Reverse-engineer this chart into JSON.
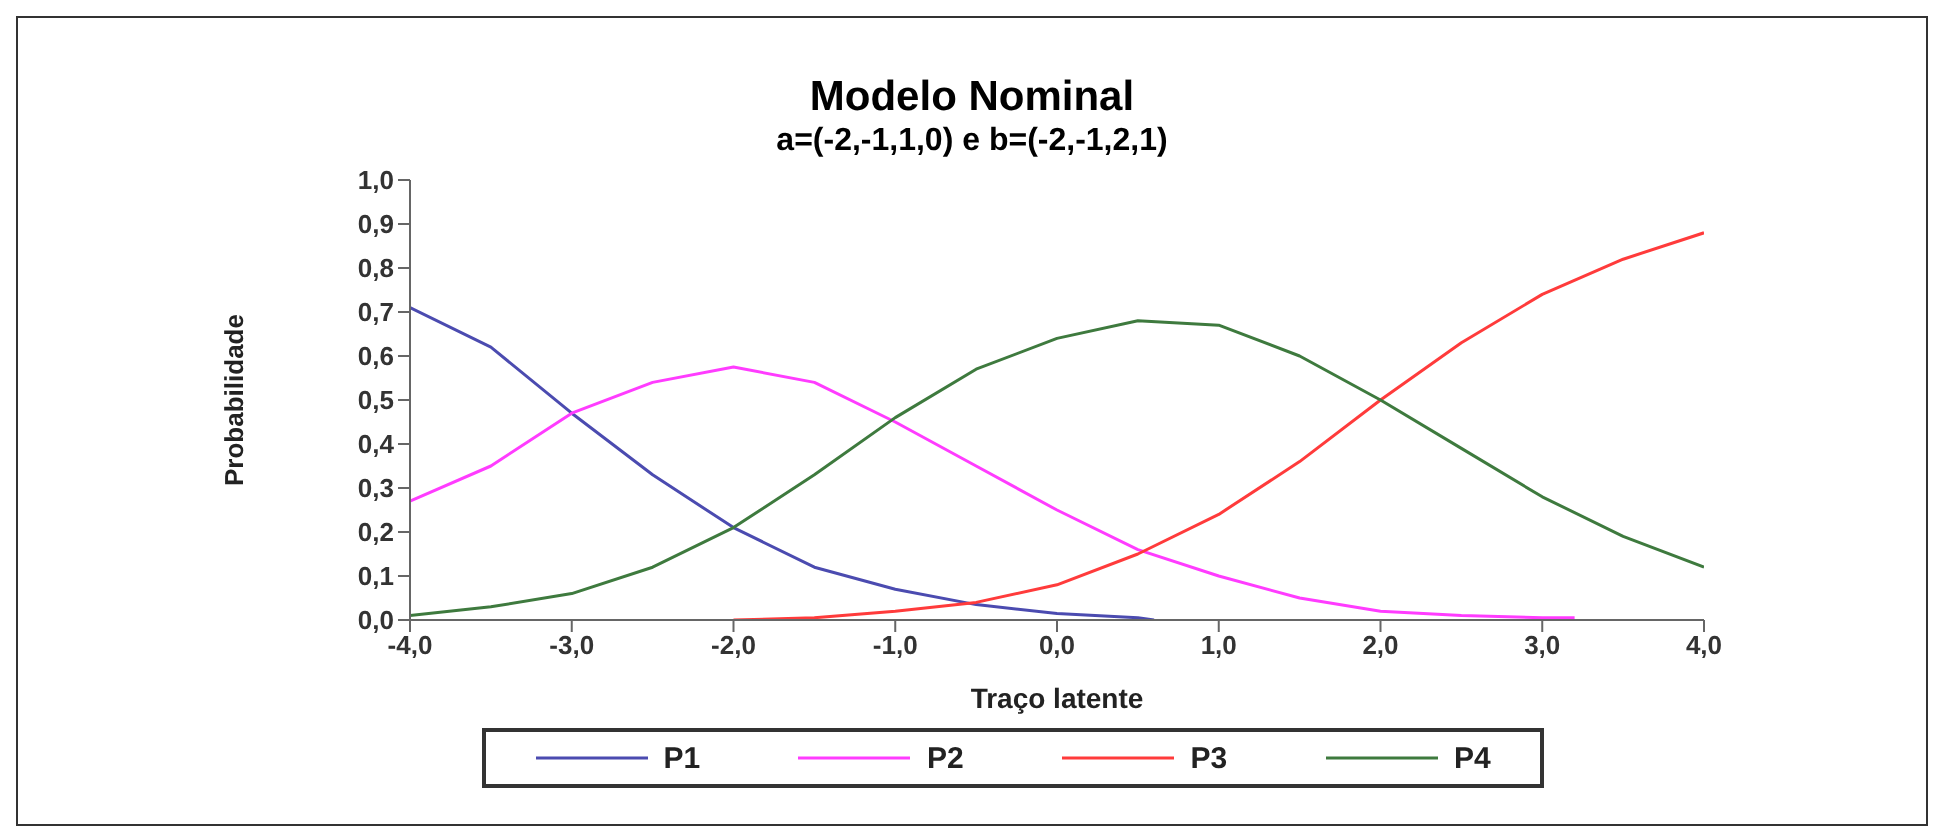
{
  "chart_data": {
    "type": "line",
    "title": "Modelo Nominal",
    "subtitle": "a=(-2,-1,1,0) e b=(-2,-1,2,1)",
    "xlabel": "Traço latente",
    "ylabel": "Probabilidade",
    "x": [
      -4,
      -3.5,
      -3,
      -2.5,
      -2,
      -1.5,
      -1,
      -0.5,
      0,
      0.5,
      0.6,
      1,
      1.5,
      2,
      2.5,
      3,
      3.2,
      3.5,
      4
    ],
    "series": [
      {
        "name": "P1",
        "color": "#4b4bb0",
        "values": [
          0.71,
          0.62,
          0.47,
          0.33,
          0.21,
          0.12,
          0.07,
          0.035,
          0.015,
          0.005,
          0,
          null,
          null,
          null,
          null,
          null,
          null,
          null,
          null
        ]
      },
      {
        "name": "P2",
        "color": "#ff3cff",
        "values": [
          0.27,
          0.35,
          0.47,
          0.54,
          0.575,
          0.54,
          0.45,
          0.35,
          0.25,
          0.16,
          null,
          0.1,
          0.05,
          0.02,
          0.01,
          0.005,
          0.005,
          null,
          null
        ]
      },
      {
        "name": "P3",
        "color": "#ff3b3b",
        "values": [
          null,
          null,
          null,
          null,
          0,
          0.005,
          0.02,
          0.04,
          0.08,
          0.15,
          null,
          0.24,
          0.36,
          0.5,
          0.63,
          0.74,
          null,
          0.82,
          0.88
        ]
      },
      {
        "name": "P4",
        "color": "#3e7a3e",
        "values": [
          0.01,
          0.03,
          0.06,
          0.12,
          0.21,
          0.33,
          0.46,
          0.57,
          0.64,
          0.68,
          null,
          0.67,
          0.6,
          0.5,
          0.39,
          0.28,
          null,
          0.19,
          0.12
        ]
      }
    ],
    "xlim": [
      -4,
      4
    ],
    "xticks": [
      {
        "value": -4,
        "label": "-4,0"
      },
      {
        "value": -3,
        "label": "-3,0"
      },
      {
        "value": -2,
        "label": "-2,0"
      },
      {
        "value": -1,
        "label": "-1,0"
      },
      {
        "value": 0,
        "label": "0,0"
      },
      {
        "value": 1,
        "label": "1,0"
      },
      {
        "value": 2,
        "label": "2,0"
      },
      {
        "value": 3,
        "label": "3,0"
      },
      {
        "value": 4,
        "label": "4,0"
      }
    ],
    "ylim": [
      0,
      1
    ],
    "yticks": [
      {
        "value": 0,
        "label": "0,0"
      },
      {
        "value": 0.1,
        "label": "0,1"
      },
      {
        "value": 0.2,
        "label": "0,2"
      },
      {
        "value": 0.3,
        "label": "0,3"
      },
      {
        "value": 0.4,
        "label": "0,4"
      },
      {
        "value": 0.5,
        "label": "0,5"
      },
      {
        "value": 0.6,
        "label": "0,6"
      },
      {
        "value": 0.7,
        "label": "0,7"
      },
      {
        "value": 0.8,
        "label": "0,8"
      },
      {
        "value": 0.9,
        "label": "0,9"
      },
      {
        "value": 1,
        "label": "1,0"
      }
    ],
    "grid": false,
    "legend": "bottom",
    "marker": "none",
    "line_style": "solid"
  }
}
